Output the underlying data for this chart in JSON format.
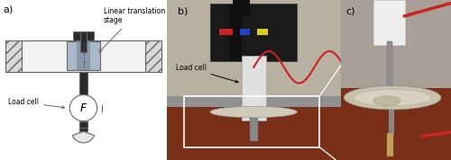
{
  "panel_a_label": "a)",
  "panel_b_label": "b)",
  "panel_c_label": "c)",
  "label_linear_translation": "Linear translation\nstage",
  "label_load_cell_a": "Load cell",
  "label_load_cell_b": "Load cell",
  "label_f": "F",
  "bg_color": "#ffffff",
  "schematic_line_color": "#666666",
  "schematic_fill_blue": "#a8b8c8",
  "schematic_fill_blue_dark": "#8898a8",
  "schematic_box_fill": "#e8e8e8",
  "hatch_fill": "#d8d8d8",
  "circle_fill": "#ffffff",
  "photo_b_wall": "#b8b0a0",
  "photo_b_floor": "#7a3018",
  "photo_b_device": "#1a1a1a",
  "photo_b_white_part": "#e8e8e8",
  "photo_c_wall": "#b0a898",
  "photo_c_floor": "#7a3018",
  "photo_c_white": "#e8e8e8"
}
